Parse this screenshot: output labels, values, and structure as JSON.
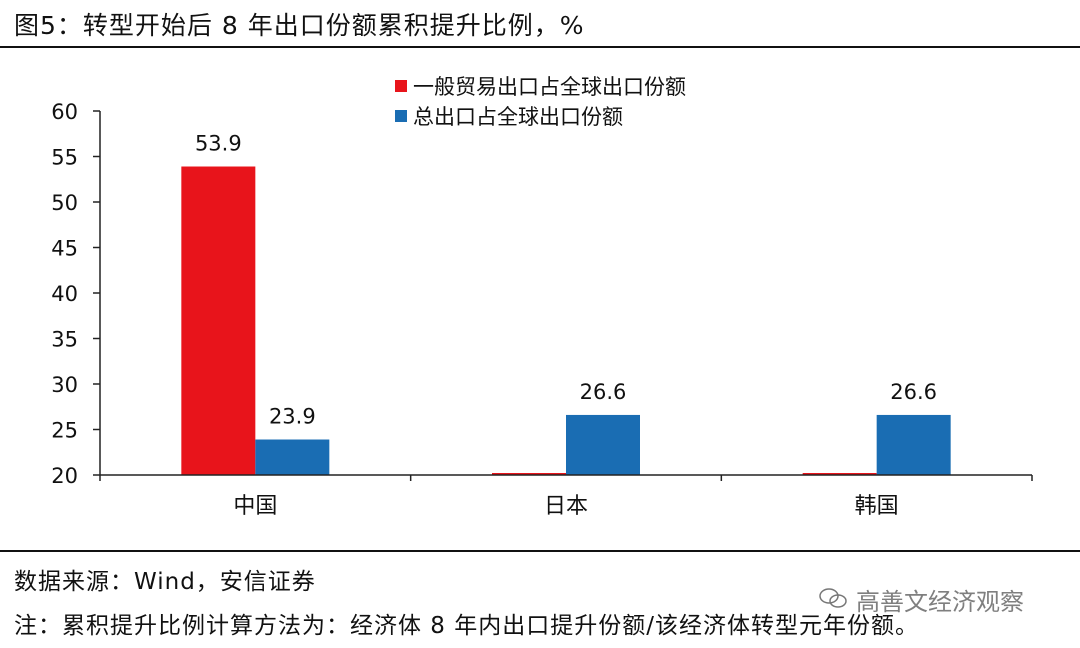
{
  "title": "图5：转型开始后 8 年出口份额累积提升比例，%",
  "source": "数据来源：Wind，安信证券",
  "note": "注：累积提升比例计算方法为：经济体 8 年内出口提升份额/该经济体转型元年份额。",
  "watermark": "高善文经济观察",
  "colors": {
    "series1": "#e8141b",
    "series2": "#1a6db3",
    "axis": "#222222"
  },
  "chart_data": {
    "type": "bar",
    "categories": [
      "中国",
      "日本",
      "韩国"
    ],
    "series": [
      {
        "name": "一般贸易出口占全球出口份额",
        "values": [
          53.9,
          null,
          null
        ]
      },
      {
        "name": "总出口占全球出口份额",
        "values": [
          23.9,
          26.6,
          26.6
        ]
      }
    ],
    "data_labels": [
      [
        "53.9",
        null,
        null
      ],
      [
        "23.9",
        "26.6",
        "26.6"
      ]
    ],
    "ylim": [
      20,
      60
    ],
    "yticks": [
      20,
      25,
      30,
      35,
      40,
      45,
      50,
      55,
      60
    ],
    "legend_position": "top-right",
    "grid": false
  }
}
